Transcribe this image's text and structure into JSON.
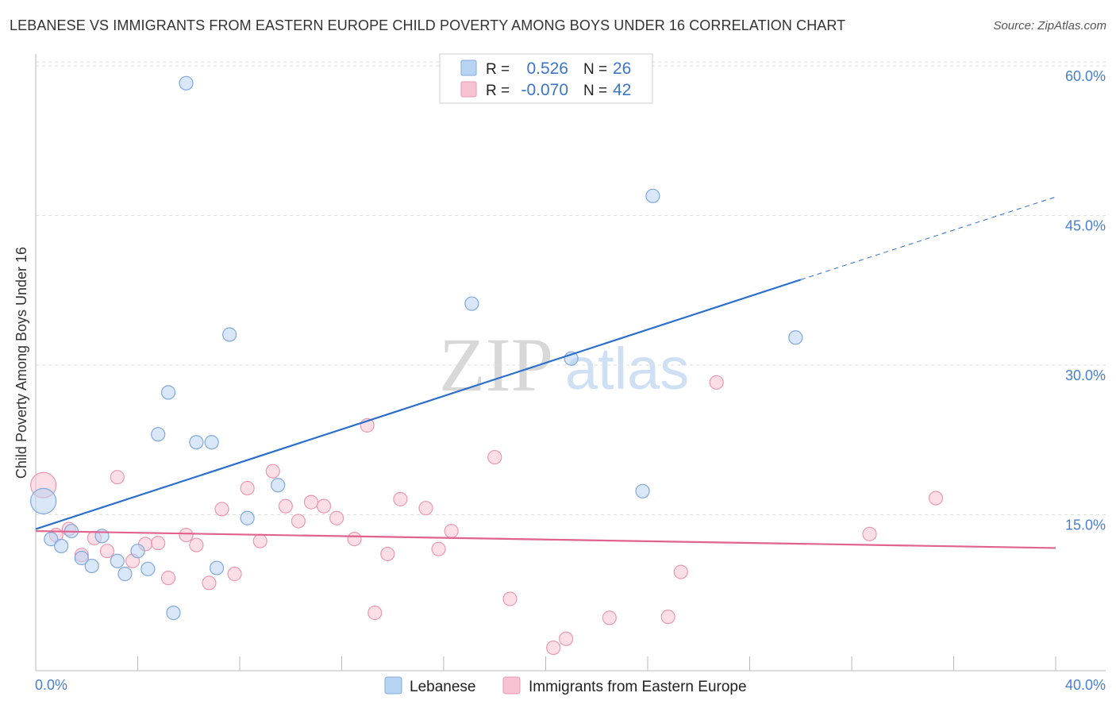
{
  "title": "LEBANESE VS IMMIGRANTS FROM EASTERN EUROPE CHILD POVERTY AMONG BOYS UNDER 16 CORRELATION CHART",
  "source": "Source: ZipAtlas.com",
  "watermark": {
    "part1": "ZIP",
    "part2": "atlas"
  },
  "colors": {
    "blue_fill": "#b9d4f3",
    "blue_stroke": "#7fa9dd",
    "blue_line": "#2b6fcc",
    "pink_fill": "#f7c3d2",
    "pink_stroke": "#e99ab3",
    "pink_line": "#e0628e",
    "tick_label": "#4a7fcf",
    "grid": "#dddddd"
  },
  "chart_data": {
    "type": "scatter",
    "title": "LEBANESE VS IMMIGRANTS FROM EASTERN EUROPE CHILD POVERTY AMONG BOYS UNDER 16 CORRELATION CHART",
    "xlabel": "",
    "ylabel": "Child Poverty Among Boys Under 16",
    "xlim": [
      0,
      40
    ],
    "ylim": [
      0,
      60
    ],
    "x_tick_labels": [
      "0.0%",
      "40.0%"
    ],
    "y_ticks": [
      15,
      30,
      45,
      60
    ],
    "y_tick_labels": [
      "15.0%",
      "30.0%",
      "45.0%",
      "60.0%"
    ],
    "stats_box": [
      {
        "r_label": "R =",
        "r_value": "0.526",
        "n_label": "N =",
        "n_value": "26"
      },
      {
        "r_label": "R =",
        "r_value": "-0.070",
        "n_label": "N =",
        "n_value": "42"
      }
    ],
    "series": [
      {
        "name": "Lebanese",
        "color": "#b9d4f3",
        "trend": {
          "x0": 0,
          "y0": 14.2,
          "x1": 30,
          "y1": 39.2,
          "dash_x1": 40,
          "dash_y1": 47.5
        },
        "points": [
          {
            "x": 0.3,
            "y": 17.0,
            "big": true
          },
          {
            "x": 0.6,
            "y": 13.2
          },
          {
            "x": 1.0,
            "y": 12.5
          },
          {
            "x": 1.4,
            "y": 14.0
          },
          {
            "x": 1.8,
            "y": 11.3
          },
          {
            "x": 2.2,
            "y": 10.5
          },
          {
            "x": 2.6,
            "y": 13.5
          },
          {
            "x": 3.2,
            "y": 11.0
          },
          {
            "x": 3.5,
            "y": 9.7
          },
          {
            "x": 4.0,
            "y": 12.0
          },
          {
            "x": 4.4,
            "y": 10.2
          },
          {
            "x": 4.8,
            "y": 23.7
          },
          {
            "x": 5.2,
            "y": 27.9
          },
          {
            "x": 5.4,
            "y": 5.8
          },
          {
            "x": 5.9,
            "y": 58.9
          },
          {
            "x": 6.3,
            "y": 22.9
          },
          {
            "x": 6.9,
            "y": 22.9
          },
          {
            "x": 7.1,
            "y": 10.3
          },
          {
            "x": 7.6,
            "y": 33.7
          },
          {
            "x": 8.3,
            "y": 15.3
          },
          {
            "x": 9.5,
            "y": 18.6
          },
          {
            "x": 17.1,
            "y": 36.8
          },
          {
            "x": 21.0,
            "y": 31.3
          },
          {
            "x": 23.8,
            "y": 18.0
          },
          {
            "x": 24.2,
            "y": 47.6
          },
          {
            "x": 29.8,
            "y": 33.4
          }
        ]
      },
      {
        "name": "Immigrants from Eastern Europe",
        "color": "#f7c3d2",
        "trend": {
          "x0": 0,
          "y0": 14.0,
          "x1": 40,
          "y1": 12.3
        },
        "points": [
          {
            "x": 0.3,
            "y": 18.6,
            "big": true
          },
          {
            "x": 0.8,
            "y": 13.6
          },
          {
            "x": 1.3,
            "y": 14.2
          },
          {
            "x": 1.8,
            "y": 11.6
          },
          {
            "x": 2.3,
            "y": 13.3
          },
          {
            "x": 2.8,
            "y": 12.0
          },
          {
            "x": 3.2,
            "y": 19.4
          },
          {
            "x": 3.8,
            "y": 11.0
          },
          {
            "x": 4.3,
            "y": 12.7
          },
          {
            "x": 4.8,
            "y": 12.8
          },
          {
            "x": 5.2,
            "y": 9.3
          },
          {
            "x": 5.9,
            "y": 13.6
          },
          {
            "x": 6.3,
            "y": 12.6
          },
          {
            "x": 6.8,
            "y": 8.8
          },
          {
            "x": 7.3,
            "y": 16.2
          },
          {
            "x": 7.8,
            "y": 9.7
          },
          {
            "x": 8.3,
            "y": 18.3
          },
          {
            "x": 8.8,
            "y": 13.0
          },
          {
            "x": 9.3,
            "y": 20.0
          },
          {
            "x": 9.8,
            "y": 16.5
          },
          {
            "x": 10.3,
            "y": 15.0
          },
          {
            "x": 10.8,
            "y": 16.9
          },
          {
            "x": 11.3,
            "y": 16.5
          },
          {
            "x": 11.8,
            "y": 15.3
          },
          {
            "x": 12.5,
            "y": 13.2
          },
          {
            "x": 13.0,
            "y": 24.6
          },
          {
            "x": 13.3,
            "y": 5.8
          },
          {
            "x": 13.8,
            "y": 11.7
          },
          {
            "x": 14.3,
            "y": 17.2
          },
          {
            "x": 15.3,
            "y": 16.3
          },
          {
            "x": 15.8,
            "y": 12.2
          },
          {
            "x": 16.3,
            "y": 14.0
          },
          {
            "x": 18.0,
            "y": 21.4
          },
          {
            "x": 18.6,
            "y": 7.2
          },
          {
            "x": 20.3,
            "y": 2.3
          },
          {
            "x": 20.8,
            "y": 3.2
          },
          {
            "x": 22.5,
            "y": 5.3
          },
          {
            "x": 24.8,
            "y": 5.4
          },
          {
            "x": 25.3,
            "y": 9.9
          },
          {
            "x": 26.7,
            "y": 28.9
          },
          {
            "x": 32.7,
            "y": 13.7
          },
          {
            "x": 35.3,
            "y": 17.3
          }
        ]
      }
    ]
  }
}
